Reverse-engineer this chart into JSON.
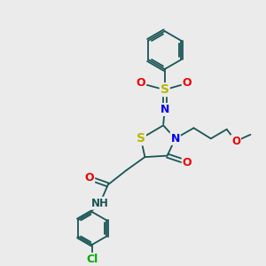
{
  "bg_color": "#ebebeb",
  "atom_colors": {
    "S": "#b8b800",
    "N": "#0000ee",
    "O": "#ee0000",
    "Cl": "#00aa00",
    "C": "#1a5555",
    "H": "#1a5555"
  },
  "bond_color": "#1a5555",
  "lw": 1.3
}
